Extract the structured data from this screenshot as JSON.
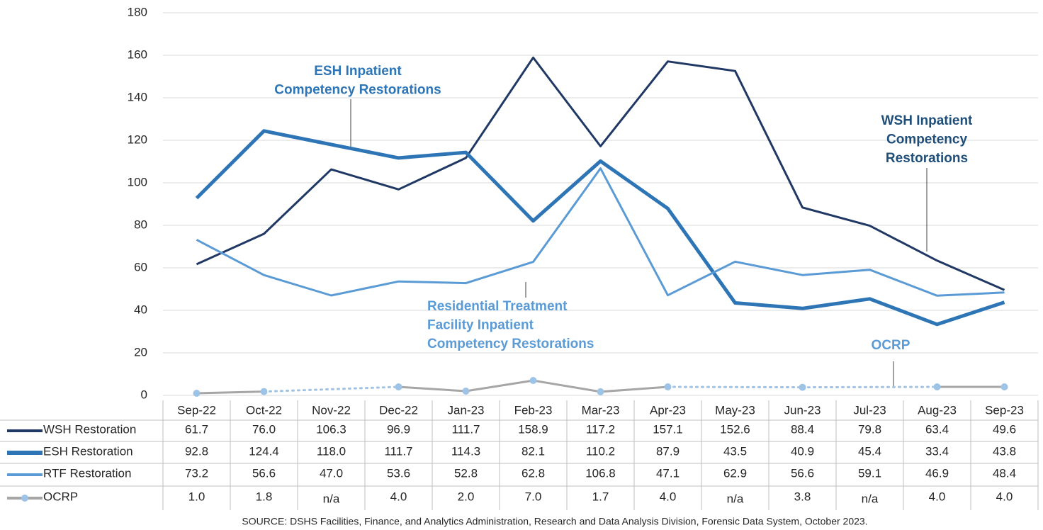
{
  "chart_data": {
    "type": "line",
    "categories": [
      "Sep-22",
      "Oct-22",
      "Nov-22",
      "Dec-22",
      "Jan-23",
      "Feb-23",
      "Mar-23",
      "Apr-23",
      "May-23",
      "Jun-23",
      "Jul-23",
      "Aug-23",
      "Sep-23"
    ],
    "ylim": [
      0,
      180
    ],
    "yticks": [
      0,
      20,
      40,
      60,
      80,
      100,
      120,
      140,
      160,
      180
    ],
    "grid": true,
    "series": [
      {
        "name": "WSH Restoration",
        "color": "#203864",
        "values": [
          61.7,
          76,
          106.3,
          96.9,
          111.7,
          158.9,
          117.2,
          157.1,
          152.6,
          88.4,
          79.8,
          63.4,
          49.6
        ],
        "value_labels": [
          "61.7",
          "76.0",
          "106.3",
          "96.9",
          "111.7",
          "158.9",
          "117.2",
          "157.1",
          "152.6",
          "88.4",
          "79.8",
          "63.4",
          "49.6"
        ]
      },
      {
        "name": "ESH Restoration",
        "color": "#2e75b6",
        "values": [
          92.8,
          124.4,
          118,
          111.7,
          114.3,
          82.1,
          110.2,
          87.9,
          43.5,
          40.9,
          45.4,
          33.4,
          43.8
        ],
        "value_labels": [
          "92.8",
          "124.4",
          "118.0",
          "111.7",
          "114.3",
          "82.1",
          "110.2",
          "87.9",
          "43.5",
          "40.9",
          "45.4",
          "33.4",
          "43.8"
        ]
      },
      {
        "name": "RTF Restoration",
        "color": "#5b9bd5",
        "values": [
          73.2,
          56.6,
          47,
          53.6,
          52.8,
          62.8,
          106.8,
          47.1,
          62.9,
          56.6,
          59.1,
          46.9,
          48.4
        ],
        "value_labels": [
          "73.2",
          "56.6",
          "47.0",
          "53.6",
          "52.8",
          "62.8",
          "106.8",
          "47.1",
          "62.9",
          "56.6",
          "59.1",
          "46.9",
          "48.4"
        ]
      },
      {
        "name": "OCRP",
        "color": "#a6a6a6",
        "marker_color": "#9dc3e6",
        "values": [
          1,
          1.8,
          null,
          4,
          2,
          7,
          1.7,
          4,
          null,
          3.8,
          null,
          4,
          4
        ],
        "value_labels": [
          "1.0",
          "1.8",
          "n/a",
          "4.0",
          "2.0",
          "7.0",
          "1.7",
          "4.0",
          "n/a",
          "3.8",
          "n/a",
          "4.0",
          "4.0"
        ]
      }
    ],
    "annotations": [
      {
        "lines": [
          "ESH Inpatient",
          "Competency Restorations"
        ],
        "color": "#2e75b6"
      },
      {
        "lines": [
          "WSH Inpatient",
          "Competency",
          "Restorations"
        ],
        "color": "#1f4e79"
      },
      {
        "lines": [
          "Residential Treatment",
          "Facility Inpatient",
          "Competency Restorations"
        ],
        "color": "#5b9bd5"
      },
      {
        "lines": [
          "OCRP"
        ],
        "color": "#5b9bd5"
      }
    ],
    "source": "SOURCE: DSHS Facilities, Finance, and Analytics Administration, Research and Data Analysis Division, Forensic Data System, October 2023."
  }
}
